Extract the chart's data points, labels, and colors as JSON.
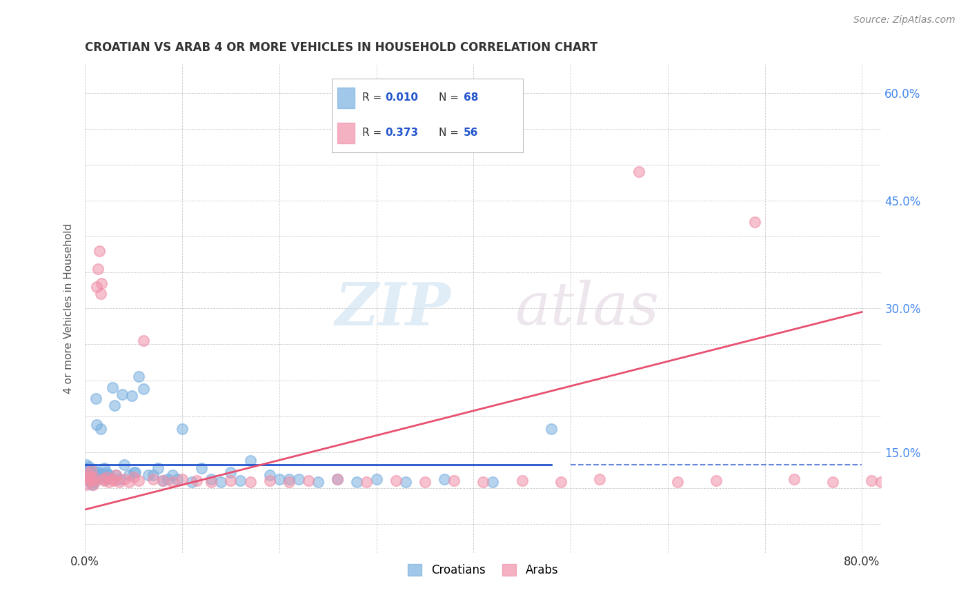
{
  "title": "CROATIAN VS ARAB 4 OR MORE VEHICLES IN HOUSEHOLD CORRELATION CHART",
  "source": "Source: ZipAtlas.com",
  "ylabel": "4 or more Vehicles in Household",
  "xlim": [
    0.0,
    0.82
  ],
  "ylim": [
    -0.04,
    0.64
  ],
  "xtick_positions": [
    0.0,
    0.1,
    0.2,
    0.3,
    0.4,
    0.5,
    0.6,
    0.7,
    0.8
  ],
  "xticklabels": [
    "0.0%",
    "",
    "",
    "",
    "",
    "",
    "",
    "",
    "80.0%"
  ],
  "ytick_positions": [
    0.0,
    0.05,
    0.1,
    0.15,
    0.2,
    0.25,
    0.3,
    0.35,
    0.4,
    0.45,
    0.5,
    0.55,
    0.6
  ],
  "yticklabels_right": [
    "",
    "",
    "15.0%",
    "",
    "",
    "",
    "30.0%",
    "",
    "",
    "45.0%",
    "",
    "",
    "60.0%"
  ],
  "croatian_R": "0.010",
  "croatian_N": "68",
  "arab_R": "0.373",
  "arab_N": "56",
  "croatian_color": "#7ab0e0",
  "arab_color": "#f090a8",
  "croatian_line_color": "#2255cc",
  "arab_line_color": "#e85070",
  "background_color": "#ffffff",
  "croatian_legend_label": "Croatians",
  "arab_legend_label": "Arabs",
  "croatian_line_solid_end": 0.48,
  "croatian_line_dashed_start": 0.5,
  "croatian_line_y": 0.082,
  "arab_line_x0": 0.0,
  "arab_line_x1": 0.8,
  "arab_line_y0": 0.02,
  "arab_line_y1": 0.295,
  "croatian_x": [
    0.001,
    0.002,
    0.003,
    0.003,
    0.004,
    0.005,
    0.005,
    0.006,
    0.006,
    0.007,
    0.007,
    0.008,
    0.008,
    0.009,
    0.01,
    0.01,
    0.011,
    0.012,
    0.013,
    0.014,
    0.015,
    0.016,
    0.018,
    0.02,
    0.021,
    0.022,
    0.022,
    0.023,
    0.025,
    0.028,
    0.03,
    0.032,
    0.035,
    0.038,
    0.04,
    0.045,
    0.048,
    0.05,
    0.052,
    0.055,
    0.06,
    0.065,
    0.07,
    0.075,
    0.08,
    0.085,
    0.09,
    0.095,
    0.1,
    0.11,
    0.12,
    0.13,
    0.14,
    0.15,
    0.16,
    0.17,
    0.19,
    0.2,
    0.21,
    0.22,
    0.24,
    0.26,
    0.28,
    0.3,
    0.33,
    0.37,
    0.42,
    0.48
  ],
  "croatian_y": [
    0.082,
    0.078,
    0.075,
    0.065,
    0.08,
    0.074,
    0.06,
    0.068,
    0.058,
    0.072,
    0.055,
    0.076,
    0.062,
    0.072,
    0.068,
    0.058,
    0.175,
    0.138,
    0.072,
    0.068,
    0.065,
    0.132,
    0.07,
    0.078,
    0.066,
    0.072,
    0.062,
    0.068,
    0.068,
    0.19,
    0.165,
    0.068,
    0.062,
    0.18,
    0.082,
    0.068,
    0.178,
    0.072,
    0.072,
    0.205,
    0.188,
    0.068,
    0.068,
    0.078,
    0.06,
    0.062,
    0.068,
    0.062,
    0.132,
    0.058,
    0.078,
    0.062,
    0.058,
    0.072,
    0.06,
    0.088,
    0.068,
    0.062,
    0.062,
    0.062,
    0.058,
    0.062,
    0.058,
    0.062,
    0.058,
    0.062,
    0.058,
    0.132
  ],
  "arab_x": [
    0.001,
    0.002,
    0.003,
    0.004,
    0.005,
    0.006,
    0.007,
    0.008,
    0.009,
    0.01,
    0.012,
    0.013,
    0.015,
    0.016,
    0.017,
    0.018,
    0.02,
    0.022,
    0.025,
    0.028,
    0.03,
    0.032,
    0.035,
    0.04,
    0.045,
    0.05,
    0.055,
    0.06,
    0.07,
    0.08,
    0.09,
    0.1,
    0.115,
    0.13,
    0.15,
    0.17,
    0.19,
    0.21,
    0.23,
    0.26,
    0.29,
    0.32,
    0.35,
    0.38,
    0.41,
    0.45,
    0.49,
    0.53,
    0.57,
    0.61,
    0.65,
    0.69,
    0.73,
    0.77,
    0.81,
    0.82
  ],
  "arab_y": [
    0.055,
    0.065,
    0.07,
    0.06,
    0.065,
    0.075,
    0.06,
    0.055,
    0.065,
    0.06,
    0.33,
    0.355,
    0.38,
    0.32,
    0.335,
    0.062,
    0.06,
    0.065,
    0.058,
    0.062,
    0.06,
    0.068,
    0.058,
    0.062,
    0.058,
    0.065,
    0.06,
    0.255,
    0.062,
    0.06,
    0.058,
    0.062,
    0.06,
    0.058,
    0.06,
    0.058,
    0.06,
    0.058,
    0.06,
    0.062,
    0.058,
    0.06,
    0.058,
    0.06,
    0.058,
    0.06,
    0.058,
    0.062,
    0.49,
    0.058,
    0.06,
    0.42,
    0.062,
    0.058,
    0.06,
    0.058
  ]
}
